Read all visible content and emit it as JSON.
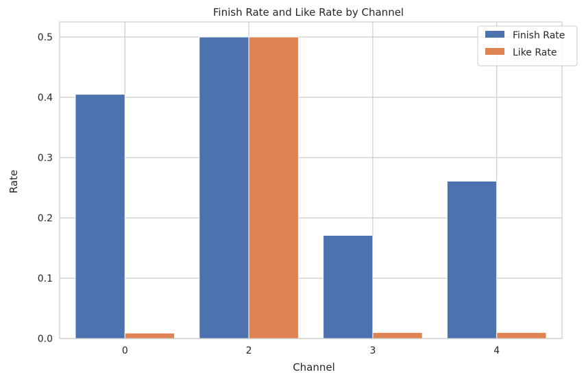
{
  "chart_data": {
    "type": "bar",
    "title": "Finish Rate and Like Rate by Channel",
    "xlabel": "Channel",
    "ylabel": "Rate",
    "categories": [
      "0",
      "2",
      "3",
      "4"
    ],
    "series": [
      {
        "name": "Finish Rate",
        "color": "#4c72b0",
        "values": [
          0.405,
          0.5,
          0.171,
          0.261
        ]
      },
      {
        "name": "Like Rate",
        "color": "#dd8452",
        "values": [
          0.009,
          0.5,
          0.01,
          0.01
        ]
      }
    ],
    "yticks": [
      "0.0",
      "0.1",
      "0.2",
      "0.3",
      "0.4",
      "0.5"
    ],
    "ylim": [
      0,
      0.525
    ],
    "grid": true,
    "legend_position": "top-right"
  }
}
